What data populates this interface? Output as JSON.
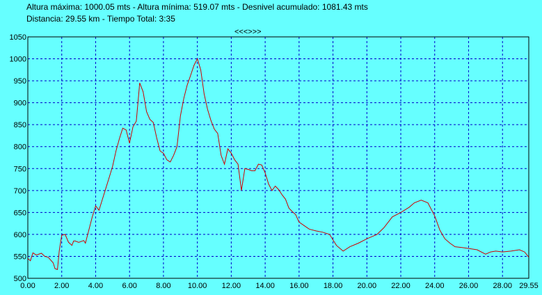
{
  "header": {
    "line1": "Altura máxima: 1000.05 mts - Altura mínima: 519.07 mts - Desnivel acumulado: 1081.43 mts",
    "line2": "Distancia: 29.55 km - Tiempo Total: 3:35"
  },
  "nav": {
    "label": "<<<>>>"
  },
  "colors": {
    "background": "#66ffff",
    "line": "#cc0000",
    "grid": "#0000cc"
  },
  "chart_data": {
    "type": "line",
    "xlim": [
      0,
      29.55
    ],
    "ylim": [
      500,
      1050
    ],
    "grid": true,
    "xticks": [
      "0.00",
      "2.00",
      "4.00",
      "6.00",
      "8.00",
      "10.00",
      "12.00",
      "14.00",
      "16.00",
      "18.00",
      "20.00",
      "22.00",
      "24.00",
      "26.00",
      "28.00",
      "29.55"
    ],
    "xtick_values": [
      0,
      2,
      4,
      6,
      8,
      10,
      12,
      14,
      16,
      18,
      20,
      22,
      24,
      26,
      28,
      29.55
    ],
    "yticks": [
      "500",
      "550",
      "600",
      "650",
      "700",
      "750",
      "800",
      "850",
      "900",
      "950",
      "1000",
      "1050"
    ],
    "ytick_values": [
      500,
      550,
      600,
      650,
      700,
      750,
      800,
      850,
      900,
      950,
      1000,
      1050
    ],
    "x": [
      0.0,
      0.15,
      0.3,
      0.5,
      0.8,
      1.0,
      1.2,
      1.5,
      1.6,
      1.75,
      1.85,
      2.0,
      2.2,
      2.4,
      2.6,
      2.7,
      2.8,
      3.0,
      3.3,
      3.4,
      3.6,
      3.8,
      4.0,
      4.2,
      4.4,
      4.6,
      4.8,
      5.0,
      5.2,
      5.4,
      5.6,
      5.8,
      6.0,
      6.2,
      6.4,
      6.6,
      6.8,
      7.0,
      7.2,
      7.4,
      7.6,
      7.8,
      8.0,
      8.2,
      8.4,
      8.6,
      8.8,
      9.0,
      9.2,
      9.4,
      9.6,
      9.8,
      10.0,
      10.2,
      10.4,
      10.6,
      10.8,
      11.0,
      11.2,
      11.4,
      11.6,
      11.8,
      12.0,
      12.2,
      12.4,
      12.6,
      12.8,
      13.0,
      13.2,
      13.4,
      13.6,
      13.8,
      14.0,
      14.2,
      14.4,
      14.6,
      14.8,
      15.0,
      15.2,
      15.4,
      15.6,
      15.8,
      16.0,
      16.3,
      16.6,
      17.0,
      17.4,
      17.8,
      18.2,
      18.6,
      19.0,
      19.5,
      20.0,
      20.3,
      20.6,
      21.0,
      21.5,
      22.0,
      22.5,
      22.8,
      23.2,
      23.6,
      24.0,
      24.3,
      24.6,
      24.9,
      25.2,
      25.6,
      26.0,
      26.5,
      27.0,
      27.3,
      27.6,
      28.0,
      28.5,
      29.0,
      29.3,
      29.55
    ],
    "y": [
      545,
      540,
      558,
      553,
      557,
      550,
      548,
      535,
      522,
      520,
      562,
      598,
      600,
      582,
      575,
      585,
      585,
      582,
      586,
      580,
      610,
      640,
      665,
      655,
      680,
      705,
      730,
      755,
      790,
      818,
      842,
      838,
      808,
      845,
      858,
      945,
      925,
      880,
      862,
      855,
      820,
      790,
      785,
      770,
      765,
      780,
      800,
      870,
      910,
      940,
      962,
      985,
      1000,
      975,
      920,
      885,
      860,
      840,
      830,
      780,
      760,
      795,
      785,
      770,
      760,
      700,
      750,
      748,
      745,
      745,
      760,
      758,
      740,
      715,
      700,
      710,
      702,
      690,
      680,
      660,
      652,
      645,
      628,
      620,
      612,
      608,
      605,
      600,
      575,
      562,
      572,
      580,
      590,
      595,
      600,
      615,
      640,
      650,
      662,
      672,
      678,
      672,
      642,
      610,
      590,
      580,
      572,
      570,
      568,
      565,
      555,
      560,
      562,
      560,
      562,
      565,
      560,
      548
    ]
  }
}
